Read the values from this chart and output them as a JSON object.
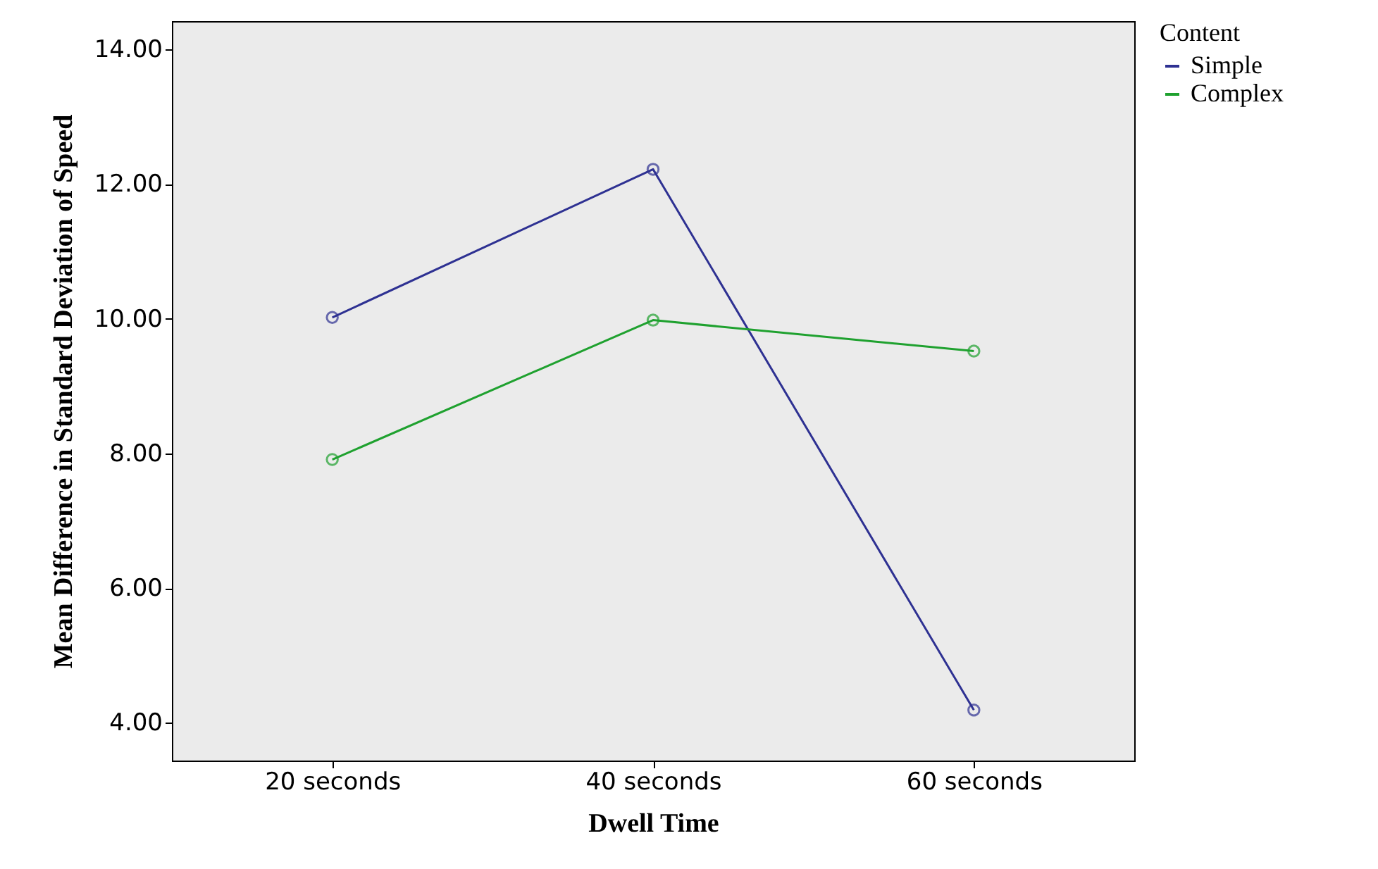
{
  "chart_data": {
    "type": "line",
    "xlabel": "Dwell Time",
    "ylabel": "Mean Difference in Standard Deviation of Speed",
    "legend_title": "Content",
    "categories": [
      "20 seconds",
      "40 seconds",
      "60 seconds"
    ],
    "series": [
      {
        "name": "Simple",
        "color": "#2e3192",
        "values": [
          10.02,
          12.22,
          4.19
        ]
      },
      {
        "name": "Complex",
        "color": "#1fa12f",
        "values": [
          7.91,
          9.98,
          9.52
        ]
      }
    ],
    "ylim": [
      3.44,
      14.42
    ],
    "yticks": [
      {
        "value": 4,
        "label": "4.00"
      },
      {
        "value": 6,
        "label": "6.00"
      },
      {
        "value": 8,
        "label": "8.00"
      },
      {
        "value": 10,
        "label": "10.00"
      },
      {
        "value": 12,
        "label": "12.00"
      },
      {
        "value": 14,
        "label": "14.00"
      }
    ],
    "grid": false,
    "legend": "top right",
    "marker": "circle",
    "line_style": "solid"
  }
}
